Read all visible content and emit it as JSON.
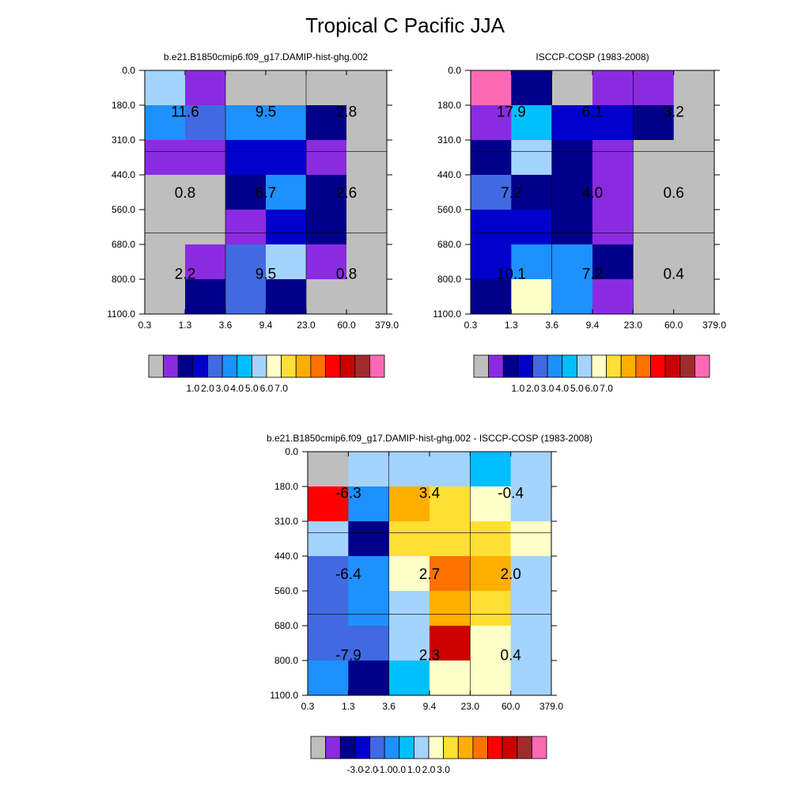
{
  "page_title": "Tropical C Pacific JJA",
  "chart_data": [
    {
      "type": "heatmap",
      "title": "b.e21.B1850cmip6.f09_g17.DAMIP-hist-ghg.002",
      "x_tick_labels": [
        "0.3",
        "1.3",
        "3.6",
        "9.4",
        "23.0",
        "60.0",
        "379.0"
      ],
      "y_tick_labels": [
        "0.0",
        "180.0",
        "310.0",
        "440.0",
        "560.0",
        "680.0",
        "800.0",
        "1100.0"
      ],
      "colors": [
        "#bebebe",
        "#8a2be2",
        "#00008b",
        "#0000cd",
        "#4169e1",
        "#1e90ff",
        "#00bfff",
        "#a4d3fe",
        "#ffffc8",
        "#ffdf33",
        "#ffaf00",
        "#ff7200",
        "#ff0000",
        "#cd0000",
        "#9e2c2c",
        "#ff69b4"
      ],
      "grid": [
        [
          7,
          1,
          0,
          0,
          0,
          0
        ],
        [
          5,
          4,
          5,
          5,
          2,
          0
        ],
        [
          1,
          1,
          3,
          3,
          1,
          0
        ],
        [
          0,
          0,
          2,
          5,
          2,
          0
        ],
        [
          0,
          0,
          1,
          3,
          2,
          0
        ],
        [
          0,
          1,
          4,
          7,
          1,
          0
        ],
        [
          0,
          2,
          4,
          2,
          0,
          0
        ]
      ],
      "box_labels": [
        {
          "col": 0,
          "row": 0,
          "text": "11.6"
        },
        {
          "col": 1,
          "row": 0,
          "text": "9.5"
        },
        {
          "col": 2,
          "row": 0,
          "text": "2.8"
        },
        {
          "col": 0,
          "row": 1,
          "text": "0.8"
        },
        {
          "col": 1,
          "row": 1,
          "text": "6.7"
        },
        {
          "col": 2,
          "row": 1,
          "text": "2.6"
        },
        {
          "col": 0,
          "row": 2,
          "text": "2.2"
        },
        {
          "col": 1,
          "row": 2,
          "text": "9.5"
        },
        {
          "col": 2,
          "row": 2,
          "text": "0.8"
        }
      ],
      "legend_labels": [
        "1.0",
        "2.0",
        "3.0",
        "4.0",
        "5.0",
        "6.0",
        "7.0"
      ]
    },
    {
      "type": "heatmap",
      "title": "ISCCP-COSP (1983-2008)",
      "x_tick_labels": [
        "0.3",
        "1.3",
        "3.6",
        "9.4",
        "23.0",
        "60.0",
        "379.0"
      ],
      "y_tick_labels": [
        "0.0",
        "180.0",
        "310.0",
        "440.0",
        "560.0",
        "680.0",
        "800.0",
        "1100.0"
      ],
      "colors": [
        "#bebebe",
        "#8a2be2",
        "#00008b",
        "#0000cd",
        "#4169e1",
        "#1e90ff",
        "#00bfff",
        "#a4d3fe",
        "#ffffc8",
        "#ffdf33",
        "#ffaf00",
        "#ff7200",
        "#ff0000",
        "#cd0000",
        "#9e2c2c",
        "#ff69b4"
      ],
      "grid": [
        [
          15,
          2,
          0,
          1,
          1,
          0
        ],
        [
          1,
          6,
          3,
          3,
          2,
          0
        ],
        [
          2,
          7,
          2,
          1,
          0,
          0
        ],
        [
          4,
          2,
          2,
          1,
          0,
          0
        ],
        [
          3,
          3,
          2,
          1,
          0,
          0
        ],
        [
          3,
          5,
          5,
          2,
          0,
          0
        ],
        [
          2,
          8,
          5,
          1,
          0,
          0
        ]
      ],
      "box_labels": [
        {
          "col": 0,
          "row": 0,
          "text": "17.9"
        },
        {
          "col": 1,
          "row": 0,
          "text": "6.1"
        },
        {
          "col": 2,
          "row": 0,
          "text": "3.2"
        },
        {
          "col": 0,
          "row": 1,
          "text": "7.2"
        },
        {
          "col": 1,
          "row": 1,
          "text": "4.0"
        },
        {
          "col": 2,
          "row": 1,
          "text": "0.6"
        },
        {
          "col": 0,
          "row": 2,
          "text": "10.1"
        },
        {
          "col": 1,
          "row": 2,
          "text": "7.2"
        },
        {
          "col": 2,
          "row": 2,
          "text": "0.4"
        }
      ],
      "legend_labels": [
        "1.0",
        "2.0",
        "3.0",
        "4.0",
        "5.0",
        "6.0",
        "7.0"
      ]
    },
    {
      "type": "heatmap",
      "title": "b.e21.B1850cmip6.f09_g17.DAMIP-hist-ghg.002 - ISCCP-COSP (1983-2008)",
      "x_tick_labels": [
        "0.3",
        "1.3",
        "3.6",
        "9.4",
        "23.0",
        "60.0",
        "379.0"
      ],
      "y_tick_labels": [
        "0.0",
        "180.0",
        "310.0",
        "440.0",
        "560.0",
        "680.0",
        "800.0",
        "1100.0"
      ],
      "colors": [
        "#bebebe",
        "#8a2be2",
        "#00008b",
        "#0000cd",
        "#4169e1",
        "#1e90ff",
        "#00bfff",
        "#a4d3fe",
        "#ffffc8",
        "#ffdf33",
        "#ffaf00",
        "#ff7200",
        "#ff0000",
        "#cd0000",
        "#9e2c2c",
        "#ff69b4"
      ],
      "grid": [
        [
          0,
          7,
          7,
          7,
          6,
          7
        ],
        [
          12,
          5,
          10,
          9,
          8,
          7
        ],
        [
          7,
          2,
          9,
          9,
          9,
          8
        ],
        [
          4,
          5,
          8,
          11,
          10,
          7
        ],
        [
          4,
          5,
          7,
          10,
          9,
          7
        ],
        [
          4,
          4,
          7,
          13,
          8,
          7
        ],
        [
          5,
          2,
          6,
          8,
          8,
          7
        ]
      ],
      "box_labels": [
        {
          "col": 0,
          "row": 0,
          "text": "-6.3"
        },
        {
          "col": 1,
          "row": 0,
          "text": "3.4"
        },
        {
          "col": 2,
          "row": 0,
          "text": "-0.4"
        },
        {
          "col": 0,
          "row": 1,
          "text": "-6.4"
        },
        {
          "col": 1,
          "row": 1,
          "text": "2.7"
        },
        {
          "col": 2,
          "row": 1,
          "text": "2.0"
        },
        {
          "col": 0,
          "row": 2,
          "text": "-7.9"
        },
        {
          "col": 1,
          "row": 2,
          "text": "2.3"
        },
        {
          "col": 2,
          "row": 2,
          "text": "0.4"
        }
      ],
      "legend_labels": [
        "-3.0",
        "-2.0",
        "-1.0",
        "0.0",
        "1.0",
        "2.0",
        "3.0"
      ]
    }
  ]
}
